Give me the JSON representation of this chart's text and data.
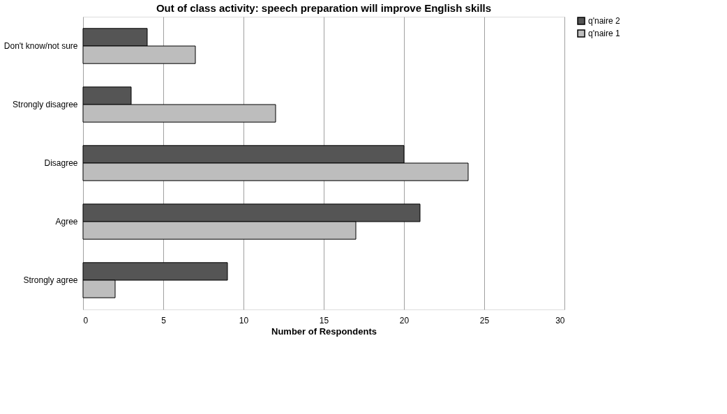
{
  "chart_data": {
    "type": "bar",
    "orientation": "horizontal",
    "title": "Out of class activity: speech preparation will improve English skills",
    "xlabel": "Number of Respondents",
    "categories": [
      "Don't know/not sure",
      "Strongly disagree",
      "Disagree",
      "Agree",
      "Strongly agree"
    ],
    "series": [
      {
        "name": "q'naire 2",
        "color": "#555555",
        "values": [
          4,
          3,
          20,
          21,
          9
        ]
      },
      {
        "name": "q'naire 1",
        "color": "#bdbdbd",
        "values": [
          7,
          12,
          24,
          17,
          2
        ]
      }
    ],
    "xlim": [
      0,
      30
    ],
    "xticks": [
      0,
      5,
      10,
      15,
      20,
      25,
      30
    ],
    "grid": "x",
    "legend": "right"
  }
}
